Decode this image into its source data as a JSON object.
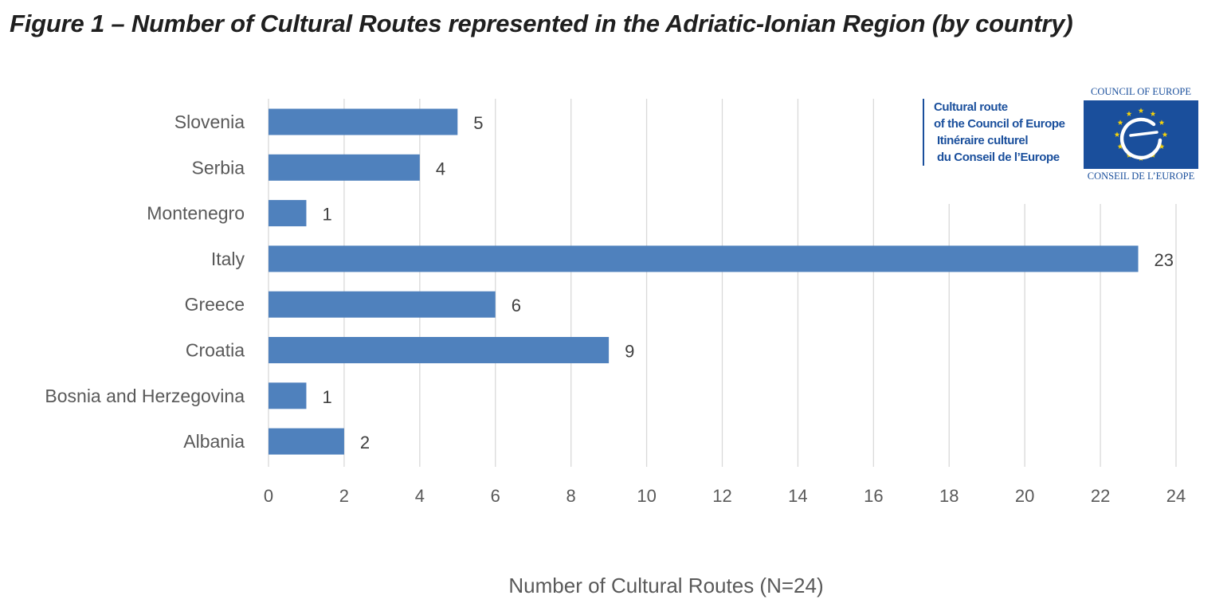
{
  "figure_title": "Figure 1 – Number of Cultural Routes represented in the Adriatic-Ionian Region (by country)",
  "logo": {
    "line1": "Cultural route",
    "line2": "of the Council of Europe",
    "line3": "Itinéraire culturel",
    "line4": "du Conseil de l’Europe",
    "org_top": "COUNCIL OF EUROPE",
    "org_bottom": "CONSEIL DE L’EUROPE",
    "flag_color": "#1a4f9c",
    "star_color": "#f5d20a"
  },
  "chart_data": {
    "type": "bar",
    "orientation": "horizontal",
    "title": "",
    "xlabel": "Number of Cultural Routes (N=24)",
    "ylabel": "",
    "categories": [
      "Slovenia",
      "Serbia",
      "Montenegro",
      "Italy",
      "Greece",
      "Croatia",
      "Bosnia and Herzegovina",
      "Albania"
    ],
    "values": [
      5,
      4,
      1,
      23,
      6,
      9,
      1,
      2
    ],
    "xlim": [
      0,
      24
    ],
    "xticks": [
      0,
      2,
      4,
      6,
      8,
      10,
      12,
      14,
      16,
      18,
      20,
      22,
      24
    ],
    "grid": "vertical",
    "data_labels": true,
    "bar_color": "#4f81bd",
    "legend": "none"
  }
}
